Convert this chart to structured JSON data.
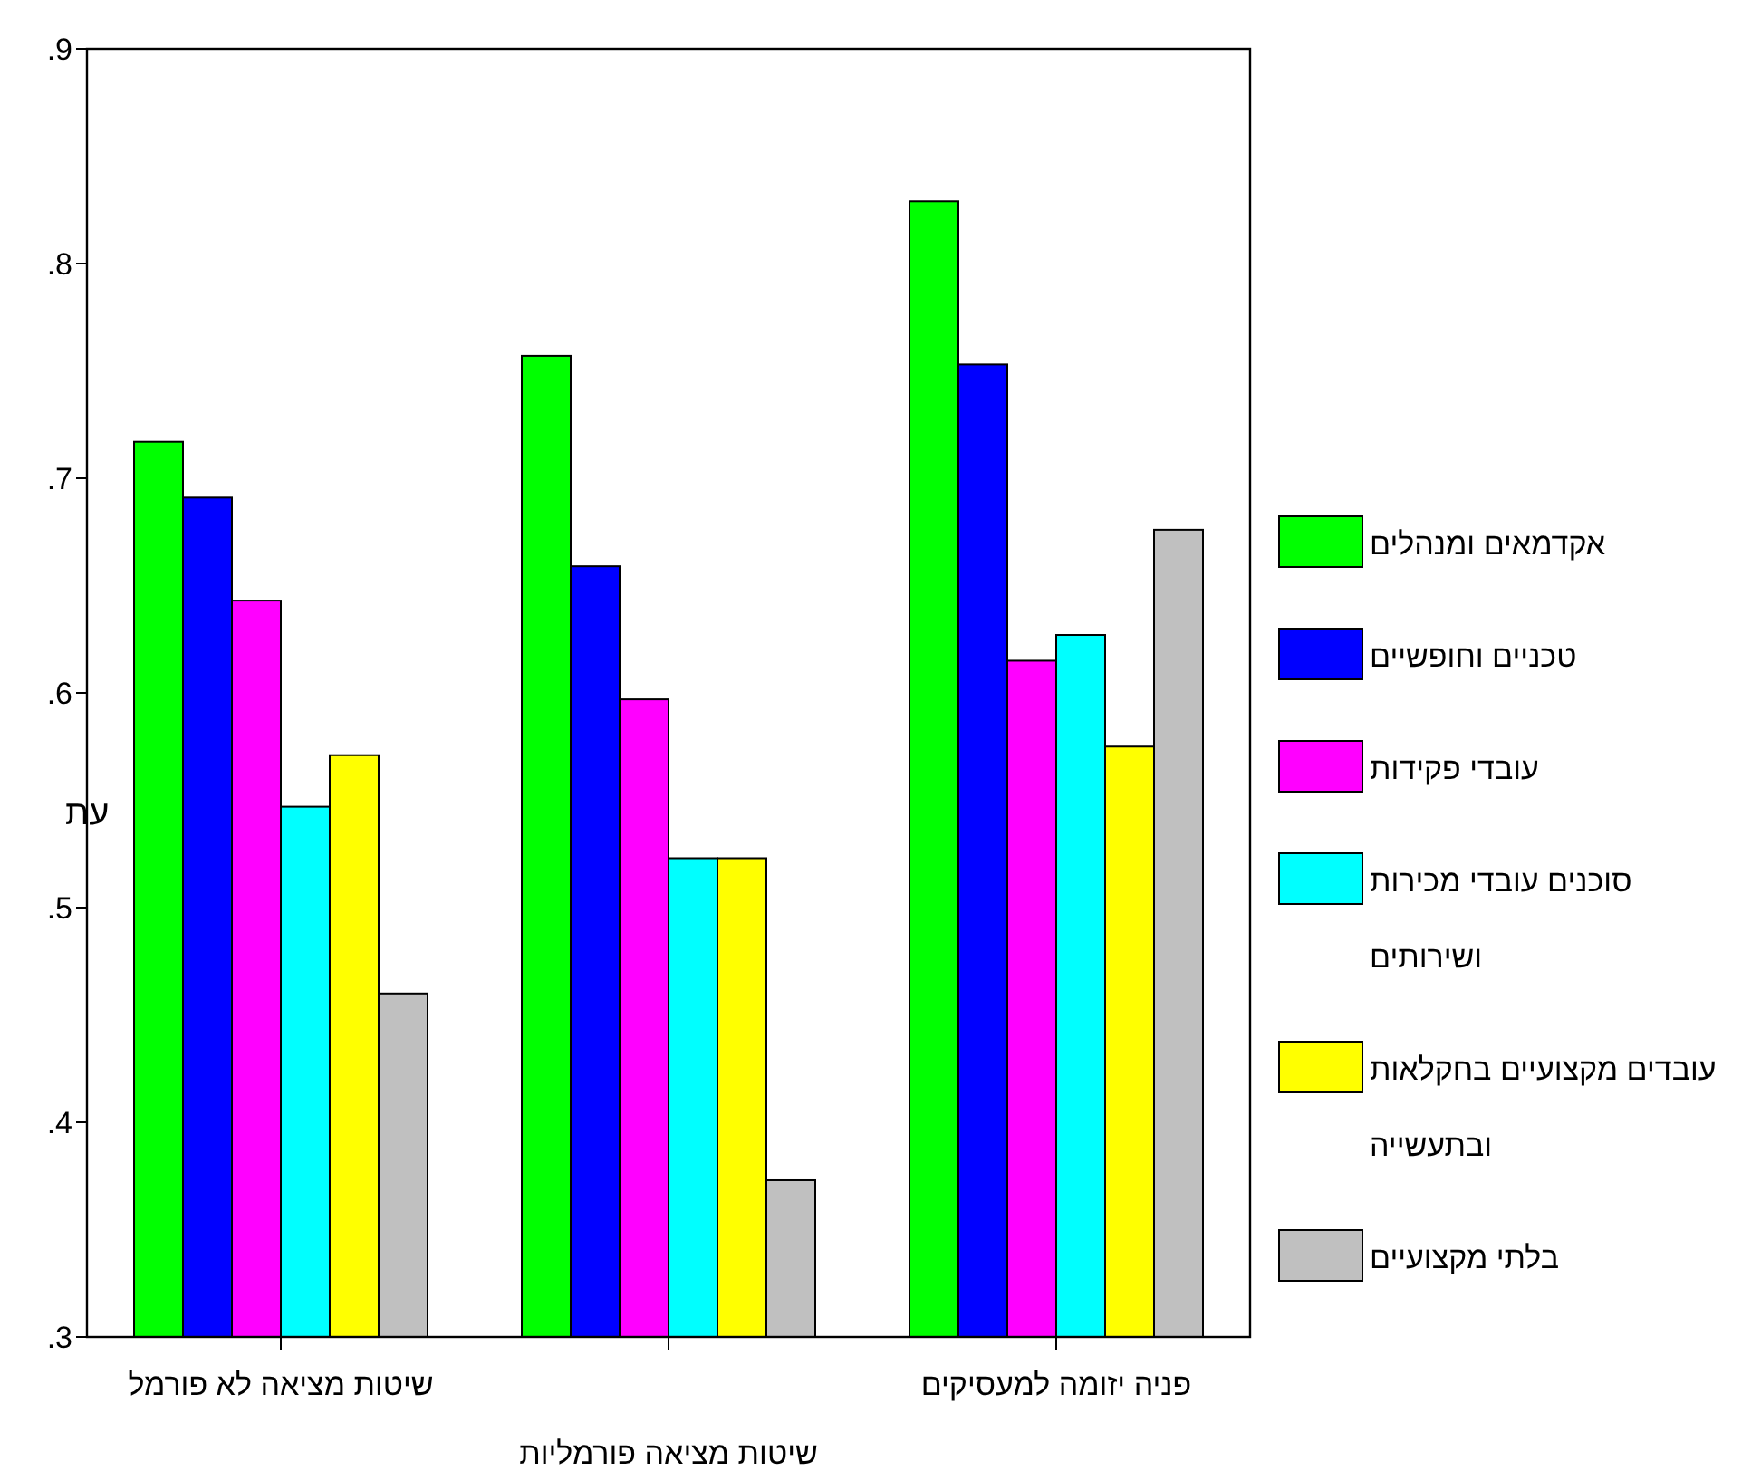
{
  "chart_data": {
    "type": "bar",
    "categories": [
      "שיטות מציאה לא פורמל",
      null,
      "פניה יזומה למעסיקים"
    ],
    "xlabel": "שיטות מציאה פורמליות",
    "ylabel": "עת",
    "ylim": [
      0.3,
      0.9
    ],
    "yticks": [
      {
        "value": 0.3,
        "label": ".3"
      },
      {
        "value": 0.4,
        "label": ".4"
      },
      {
        "value": 0.5,
        "label": ".5"
      },
      {
        "value": 0.6,
        "label": ".6"
      },
      {
        "value": 0.7,
        "label": ".7"
      },
      {
        "value": 0.8,
        "label": ".8"
      },
      {
        "value": 0.9,
        "label": ".9"
      }
    ],
    "legend": "right",
    "grid": false,
    "series": [
      {
        "name": "אקדמאים ומנהלים",
        "color": "#00ff00",
        "values": [
          0.717,
          0.757,
          0.829
        ]
      },
      {
        "name": "טכניים וחופשיים",
        "color": "#0000ff",
        "values": [
          0.691,
          0.659,
          0.753
        ]
      },
      {
        "name": "עובדי פקידות",
        "color": "#ff00ff",
        "values": [
          0.643,
          0.597,
          0.615
        ]
      },
      {
        "name": "סוכנים עובדי מכירות ושירותים",
        "color": "#00ffff",
        "values": [
          0.547,
          0.523,
          0.627
        ]
      },
      {
        "name": "עובדים מקצועיים בחקלאות ובתעשייה",
        "color": "#ffff00",
        "values": [
          0.571,
          0.523,
          0.575
        ]
      },
      {
        "name": "בלתי מקצועיים",
        "color": "#c0c0c0",
        "values": [
          0.46,
          0.373,
          0.676
        ]
      }
    ]
  }
}
